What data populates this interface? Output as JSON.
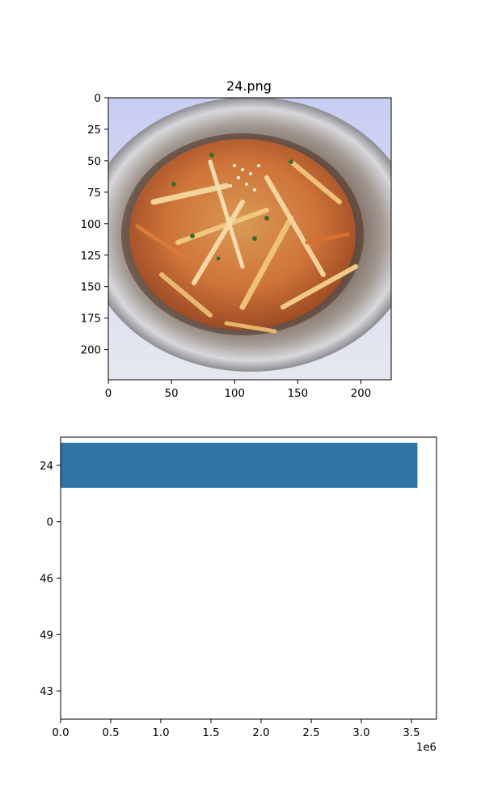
{
  "chart_data": [
    {
      "type": "image",
      "title": "24.png",
      "xlim": [
        0,
        224
      ],
      "ylim": [
        224,
        0
      ],
      "x_ticks": [
        0,
        50,
        100,
        150,
        200
      ],
      "y_ticks": [
        0,
        25,
        50,
        75,
        100,
        125,
        150,
        175,
        200
      ],
      "image_description": "stir-fried vegetable sticks with sesame seeds in a stainless steel colander"
    },
    {
      "type": "bar",
      "orientation": "horizontal",
      "categories": [
        "24",
        "0",
        "46",
        "49",
        "43"
      ],
      "values": [
        3560000,
        0,
        0,
        0,
        0
      ],
      "xlim": [
        0,
        3750000
      ],
      "x_ticks": [
        0,
        500000,
        1000000,
        1500000,
        2000000,
        2500000,
        3000000,
        3500000
      ],
      "x_tick_labels": [
        "0.0",
        "0.5",
        "1.0",
        "1.5",
        "2.0",
        "2.5",
        "3.0",
        "3.5"
      ],
      "x_offset_label": "1e6",
      "bar_color": "#2e75a6",
      "legend": "none",
      "grid": false
    }
  ]
}
